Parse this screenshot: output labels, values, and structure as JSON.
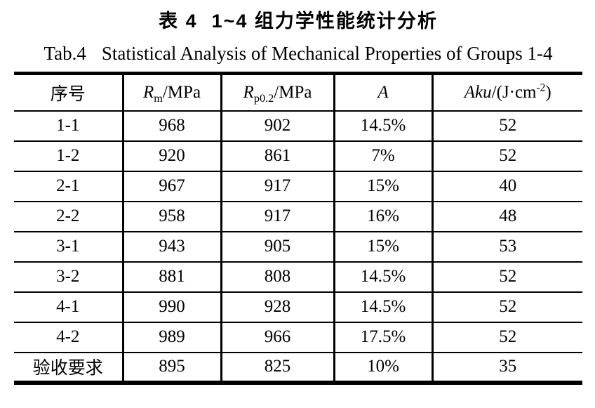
{
  "page": {
    "background": "#ffffff",
    "text_color": "#000000",
    "border_color": "#000000"
  },
  "caption": {
    "cn_label": "表 4",
    "cn_text": "1~4 组力学性能统计分析",
    "en_label": "Tab.4",
    "en_text": "Statistical Analysis of Mechanical Properties of Groups 1-4"
  },
  "table": {
    "headers": [
      {
        "text": "序号"
      },
      {
        "base": "R",
        "sub": "m",
        "rest": "/MPa"
      },
      {
        "base": "R",
        "sub": "p0.2",
        "rest": "/MPa"
      },
      {
        "base": "A"
      },
      {
        "base": "Aku",
        "rest": "/(J·cm",
        "sup": "-2",
        "tail": ")"
      }
    ],
    "rows": [
      [
        "1-1",
        "968",
        "902",
        "14.5%",
        "52"
      ],
      [
        "1-2",
        "920",
        "861",
        "7%",
        "52"
      ],
      [
        "2-1",
        "967",
        "917",
        "15%",
        "40"
      ],
      [
        "2-2",
        "958",
        "917",
        "16%",
        "48"
      ],
      [
        "3-1",
        "943",
        "905",
        "15%",
        "53"
      ],
      [
        "3-2",
        "881",
        "808",
        "14.5%",
        "52"
      ],
      [
        "4-1",
        "990",
        "928",
        "14.5%",
        "52"
      ],
      [
        "4-2",
        "989",
        "966",
        "17.5%",
        "52"
      ],
      [
        "验收要求",
        "895",
        "825",
        "10%",
        "35"
      ]
    ]
  }
}
